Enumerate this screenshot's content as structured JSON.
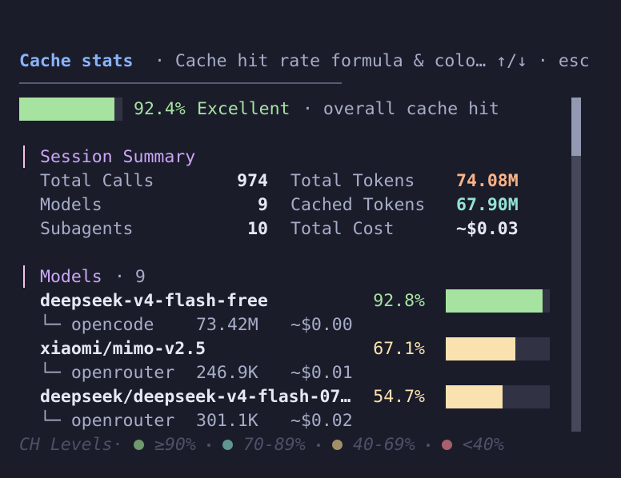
{
  "header": {
    "title": "Cache stats",
    "info": "· Cache hit rate formula & colo… ↑/↓ · esc"
  },
  "overall": {
    "hit_rate": {
      "value": 92.4,
      "label": "92.4%"
    },
    "rating": "Excellent",
    "note": "· overall cache hit",
    "color": "#a6e3a1"
  },
  "session_summary": {
    "title": "Session Summary",
    "rows": [
      {
        "label": "Total Calls",
        "value": "974",
        "label2": "Total Tokens",
        "value2": "74.08M",
        "color2": "#fab387"
      },
      {
        "label": "Models",
        "value": "9",
        "label2": "Cached Tokens",
        "value2": "67.90M",
        "color2": "#94e2d5"
      },
      {
        "label": "Subagents",
        "value": "10",
        "label2": "Total Cost",
        "value2": "~$0.03",
        "color2": "#e6e9f5"
      }
    ]
  },
  "models": {
    "title": "Models",
    "count": "· 9",
    "items": [
      {
        "name": "deepseek-v4-flash-free",
        "hit_rate": {
          "value": 92.8,
          "label": "92.8%"
        },
        "color": "#a6e3a1",
        "provider": "└─ opencode",
        "tokens": "73.42M",
        "cost": "~$0.00"
      },
      {
        "name": "xiaomi/mimo-v2.5",
        "hit_rate": {
          "value": 67.1,
          "label": "67.1%"
        },
        "color": "#f9e2af",
        "provider": "└─ openrouter",
        "tokens": "246.9K",
        "cost": "~$0.01"
      },
      {
        "name": "deepseek/deepseek-v4-flash-07…",
        "hit_rate": {
          "value": 54.7,
          "label": "54.7%"
        },
        "color": "#f9e2af",
        "provider": "└─ openrouter",
        "tokens": "301.1K",
        "cost": "~$0.02"
      }
    ]
  },
  "legend": {
    "title": "CH Levels·",
    "items": [
      {
        "label": "≥90%",
        "color": "#6f9a6c"
      },
      {
        "label": "70-89%",
        "color": "#5f9690"
      },
      {
        "label": "40-69%",
        "color": "#a0906a"
      },
      {
        "label": "<40%",
        "color": "#a8606c"
      }
    ]
  }
}
